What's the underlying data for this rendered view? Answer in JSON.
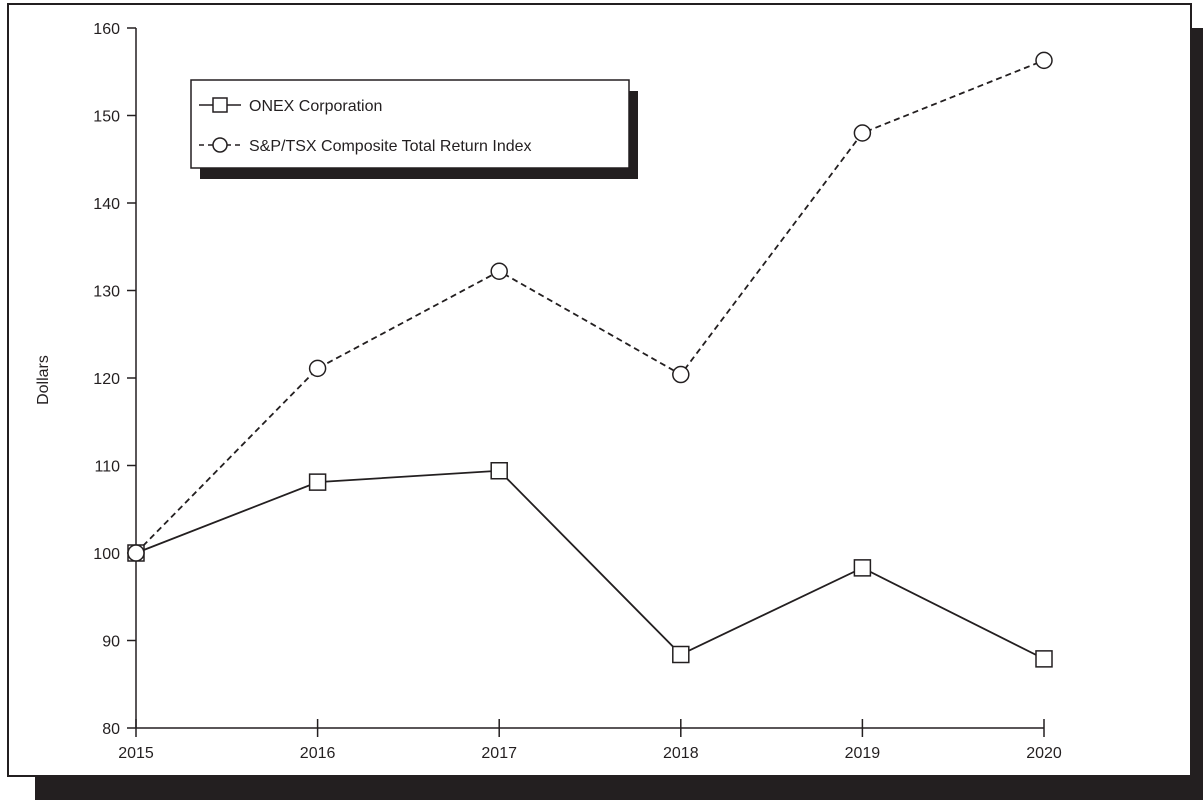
{
  "chart_data": {
    "type": "line",
    "title": "",
    "xlabel": "",
    "ylabel": "Dollars",
    "x": [
      2015,
      2016,
      2017,
      2018,
      2019,
      2020
    ],
    "ylim": [
      80,
      160
    ],
    "yticks": [
      80,
      90,
      100,
      110,
      120,
      130,
      140,
      150,
      160
    ],
    "grid": false,
    "legend_position": "top-left",
    "series": [
      {
        "name": "ONEX Corporation",
        "marker": "square",
        "line": "solid",
        "values": [
          100,
          108.1,
          109.4,
          88.4,
          98.3,
          87.9
        ]
      },
      {
        "name": "S&P/TSX Composite Total Return Index",
        "marker": "circle",
        "line": "dashed",
        "values": [
          100,
          121.1,
          132.2,
          120.4,
          148.0,
          156.3
        ]
      }
    ],
    "colors": {
      "ink": "#231f20",
      "background": "#ffffff",
      "shadow": "#231f20"
    }
  }
}
